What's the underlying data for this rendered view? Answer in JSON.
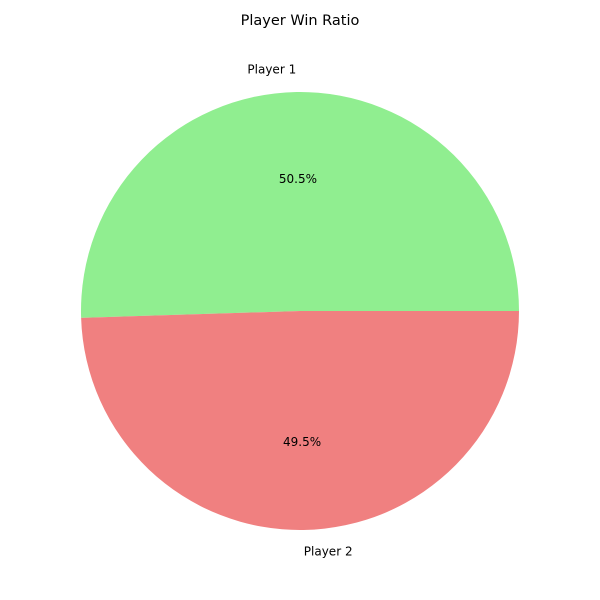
{
  "chart_data": {
    "type": "pie",
    "title": "Player Win Ratio",
    "labels": [
      "Player 1",
      "Player 2"
    ],
    "values": [
      50.5,
      49.5
    ],
    "percent_labels": [
      "50.5%",
      "49.5%"
    ],
    "colors": [
      "#90ee90",
      "#f08080"
    ],
    "start_angle_deg": 0,
    "direction": "counterclockwise"
  }
}
